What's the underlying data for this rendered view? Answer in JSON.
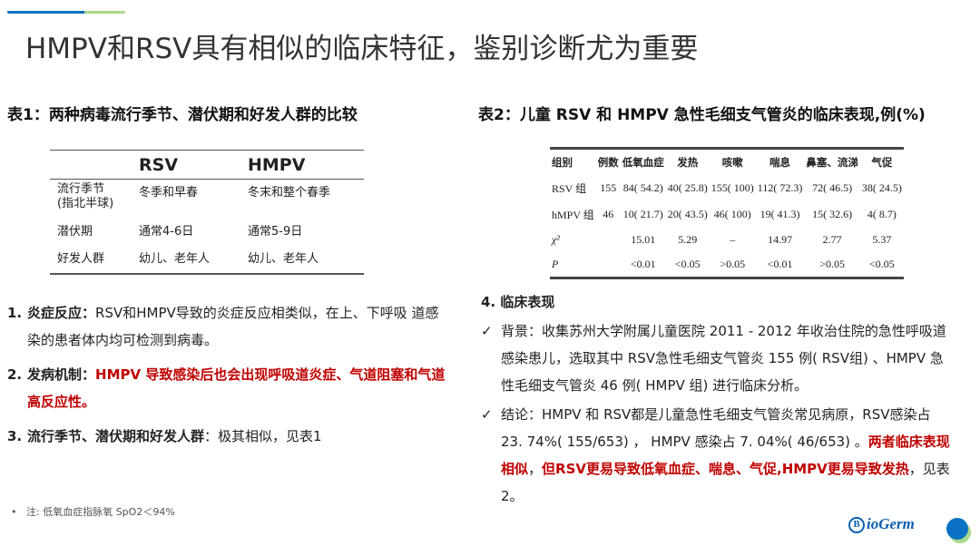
{
  "title": "HMPV和RSV具有相似的临床特征，鉴别诊断尤为重要",
  "colors": {
    "accent_blue": "#0a72c4",
    "accent_green": "#a9d88a",
    "highlight_red": "#c00000"
  },
  "table1": {
    "caption": "表1：两种病毒流行季节、潜伏期和好发人群的比较",
    "headers": [
      "",
      "RSV",
      "HMPV"
    ],
    "rows": [
      [
        "流行季节\n(指北半球)",
        "冬季和早春",
        "冬末和整个春季"
      ],
      [
        "潜伏期",
        "通常4-6日",
        "通常5-9日"
      ],
      [
        "好发人群",
        "幼儿、老年人",
        "幼儿、老年人"
      ]
    ]
  },
  "table2": {
    "caption": "表2：儿童 RSV 和 HMPV 急性毛细支气管炎的临床表现,例(%)",
    "headers": [
      "组别",
      "例数",
      "低氧血症",
      "发热",
      "咳嗽",
      "喘息",
      "鼻塞、流涕",
      "气促"
    ],
    "rows": [
      [
        "RSV 组",
        "155",
        "84( 54.2)",
        "40( 25.8)",
        "155( 100)",
        "112( 72.3)",
        "72( 46.5)",
        "38( 24.5)"
      ],
      [
        "hMPV 组",
        "46",
        "10( 21.7)",
        "20( 43.5)",
        "46( 100)",
        "19( 41.3)",
        "15( 32.6)",
        "4( 8.7)"
      ],
      [
        "χ²",
        "",
        "15.01",
        "5.29",
        "–",
        "14.97",
        "2.77",
        "5.37"
      ],
      [
        "P",
        "",
        "<0.01",
        "<0.05",
        ">0.05",
        "<0.01",
        ">0.05",
        "<0.05"
      ]
    ]
  },
  "left_points": [
    {
      "num": "1.",
      "label": "炎症反应：",
      "text": "RSV和HMPV导致的炎症反应相类似，在上、下呼吸 道感染的患者体内均可检测到病毒。",
      "red": ""
    },
    {
      "num": "2.",
      "label": "发病机制：",
      "text": "",
      "red": "HMPV 导致感染后也会出现呼吸道炎症、气道阻塞和气道高反应性。"
    },
    {
      "num": "3.",
      "label": "流行季节、潜伏期和好发人群",
      "text": "：极其相似，见表1",
      "red": ""
    }
  ],
  "right": {
    "heading": "4.  临床表现",
    "background": "背景：收集苏州大学附属儿童医院 2011 - 2012 年收治住院的急性呼吸道感染患儿，选取其中 RSV急性毛细支气管炎 155 例( RSV组) 、HMPV 急性毛细支气管炎 46 例( HMPV 组) 进行临床分析。",
    "conclusion_plain": "结论：HMPV 和 RSV都是儿童急性毛细支气管炎常见病原，RSV感染占 23. 74%( 155/653) ， HMPV 感染占 7. 04%( 46/653) 。",
    "conclusion_red1": "两者临床表现相似",
    "conclusion_mid": "，",
    "conclusion_red2": "但RSV更易导致低氧血症、喘息、气促,HMPV更易导致发热",
    "conclusion_end": "，见表2。",
    "check": "✓"
  },
  "note": "注: 低氧血症指脉氧 SpO2＜94%",
  "note_bullet": "•",
  "logo": {
    "text": "ioGerm",
    "mark": "B"
  }
}
